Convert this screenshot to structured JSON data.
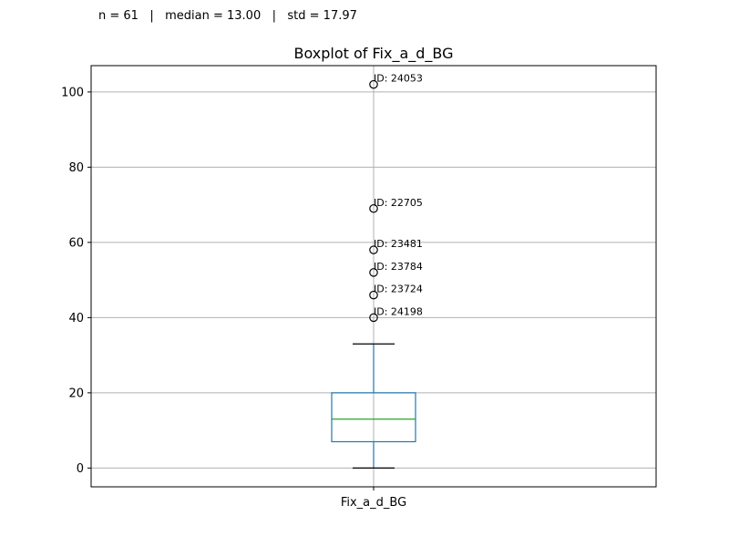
{
  "stats_line": "n = 61   |   median = 13.00   |   std = 17.97",
  "chart_data": {
    "type": "boxplot",
    "title": "Boxplot of Fix_a_d_BG",
    "categories": [
      "Fix_a_d_BG"
    ],
    "ylim": [
      -5,
      107
    ],
    "yticks": [
      0,
      20,
      40,
      60,
      80,
      100
    ],
    "grid": true,
    "box": {
      "whisker_low": 0,
      "q1": 7,
      "median": 13,
      "q3": 20,
      "whisker_high": 33
    },
    "outliers": [
      {
        "value": 102,
        "label": "ID: 24053"
      },
      {
        "value": 69,
        "label": "ID: 22705"
      },
      {
        "value": 58,
        "label": "ID: 23481"
      },
      {
        "value": 52,
        "label": "ID: 23784"
      },
      {
        "value": 46,
        "label": "ID: 23724"
      },
      {
        "value": 40,
        "label": "ID: 24198"
      }
    ],
    "colors": {
      "box": "#1f77b4",
      "median": "#2ca02c",
      "whisker_cap": "#000000",
      "grid": "#b0b0b0"
    }
  }
}
